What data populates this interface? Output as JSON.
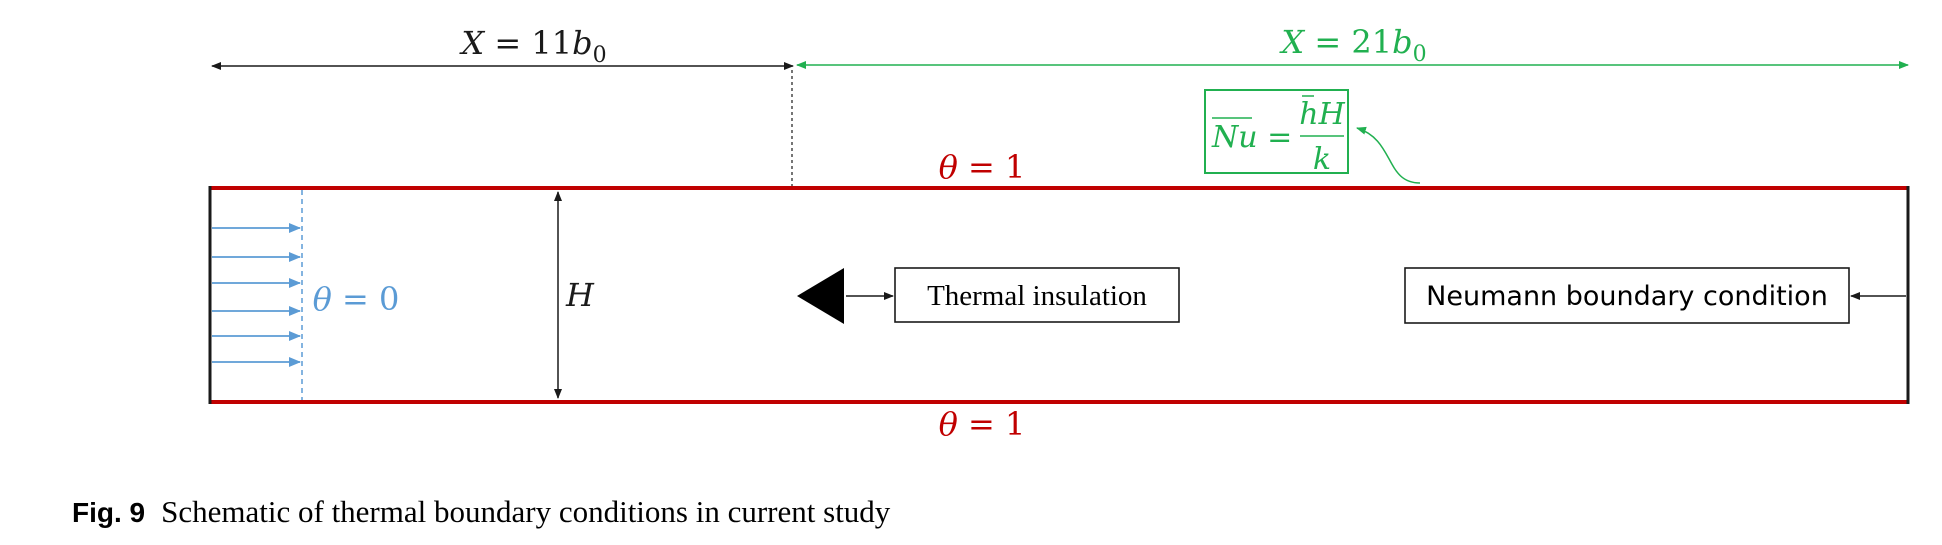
{
  "colors": {
    "black": "#1a1a1a",
    "wall": "#c00000",
    "inlet": "#5b9bd5",
    "outlet": "#21b050"
  },
  "dim_upstream": {
    "lhs": "X",
    "eq": " = 11",
    "var": "b",
    "sub": "0"
  },
  "dim_downstream": {
    "lhs": "X",
    "eq": " = 21",
    "var": "b",
    "sub": "0"
  },
  "nusselt": {
    "lhs": "Nu",
    "eq": " =",
    "num": "hH",
    "den": "k"
  },
  "top_wall_label": {
    "sym": "θ",
    "eq": " = 1"
  },
  "bottom_wall_label": {
    "sym": "θ",
    "eq": " = 1"
  },
  "inlet_label": {
    "sym": "θ",
    "eq": " = 0"
  },
  "height_label": "H",
  "thermal_insulation": "Thermal insulation",
  "neumann": "Neumann boundary condition",
  "caption": {
    "label": "Fig. 9",
    "text": "Schematic of thermal boundary conditions in current study"
  }
}
